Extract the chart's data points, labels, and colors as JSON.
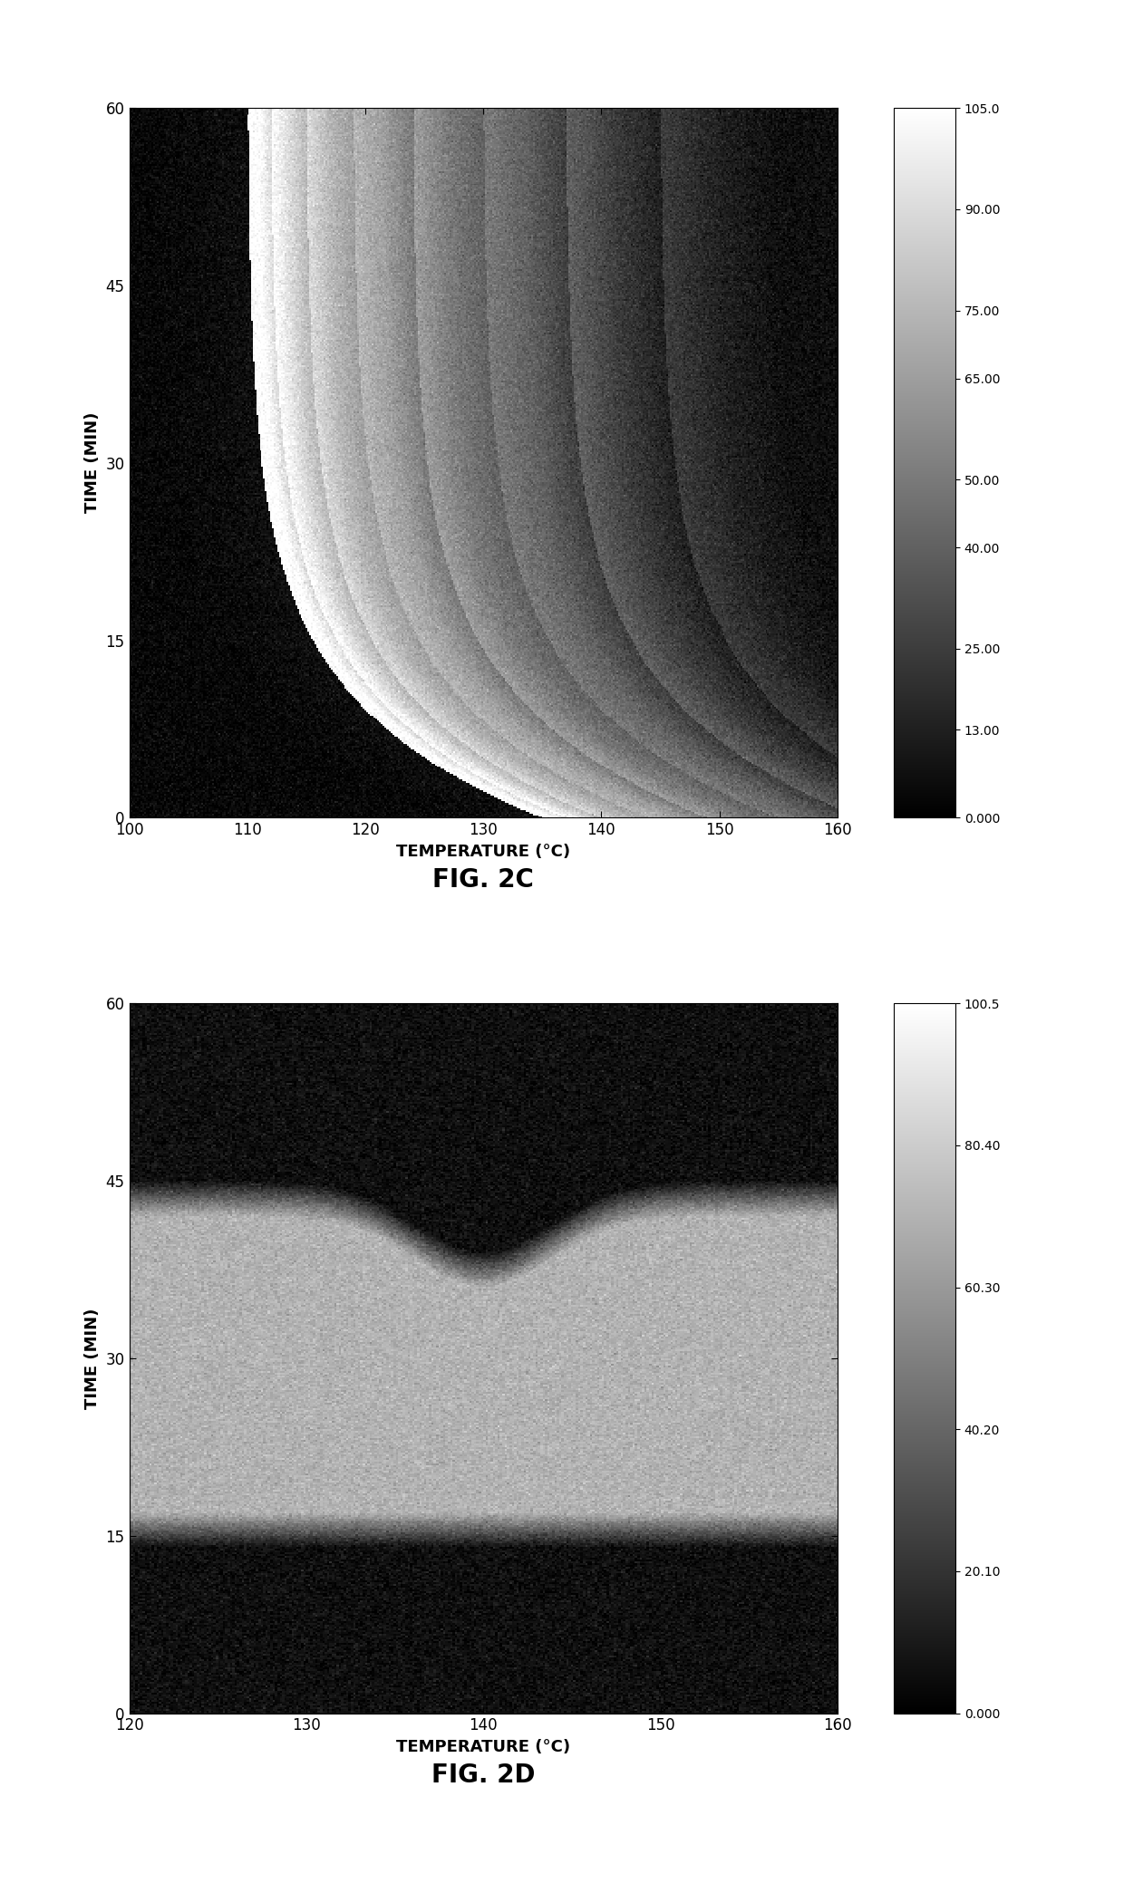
{
  "fig2c": {
    "temp_range": [
      100,
      160
    ],
    "time_range": [
      0,
      60
    ],
    "colorbar_ticks": [
      0.0,
      13.0,
      25.0,
      40.0,
      50.0,
      65.0,
      75.0,
      90.0,
      105.0
    ],
    "colorbar_labels": [
      "0.000",
      "13.00",
      "25.00",
      "40.00",
      "50.00",
      "65.00",
      "75.00",
      "90.00",
      "105.0"
    ],
    "xlabel": "TEMPERATURE (°C)",
    "ylabel": "TIME (MIN)",
    "fig_label": "FIG. 2C",
    "xticks": [
      100,
      110,
      120,
      130,
      140,
      150,
      160
    ],
    "yticks": [
      0,
      15,
      30,
      45,
      60
    ],
    "vmin": 0,
    "vmax": 105
  },
  "fig2d": {
    "temp_range": [
      120,
      160
    ],
    "time_range": [
      0,
      60
    ],
    "colorbar_ticks": [
      0.0,
      20.1,
      40.2,
      60.3,
      80.4,
      100.5
    ],
    "colorbar_labels": [
      "0.000",
      "20.10",
      "40.20",
      "60.30",
      "80.40",
      "100.5"
    ],
    "xlabel": "TEMPERATURE (°C)",
    "ylabel": "TIME (MIN)",
    "fig_label": "FIG. 2D",
    "xticks": [
      120,
      130,
      140,
      150,
      160
    ],
    "yticks": [
      0,
      15,
      30,
      45,
      60
    ],
    "vmin": 0,
    "vmax": 100.5
  },
  "background_color": "#ffffff"
}
